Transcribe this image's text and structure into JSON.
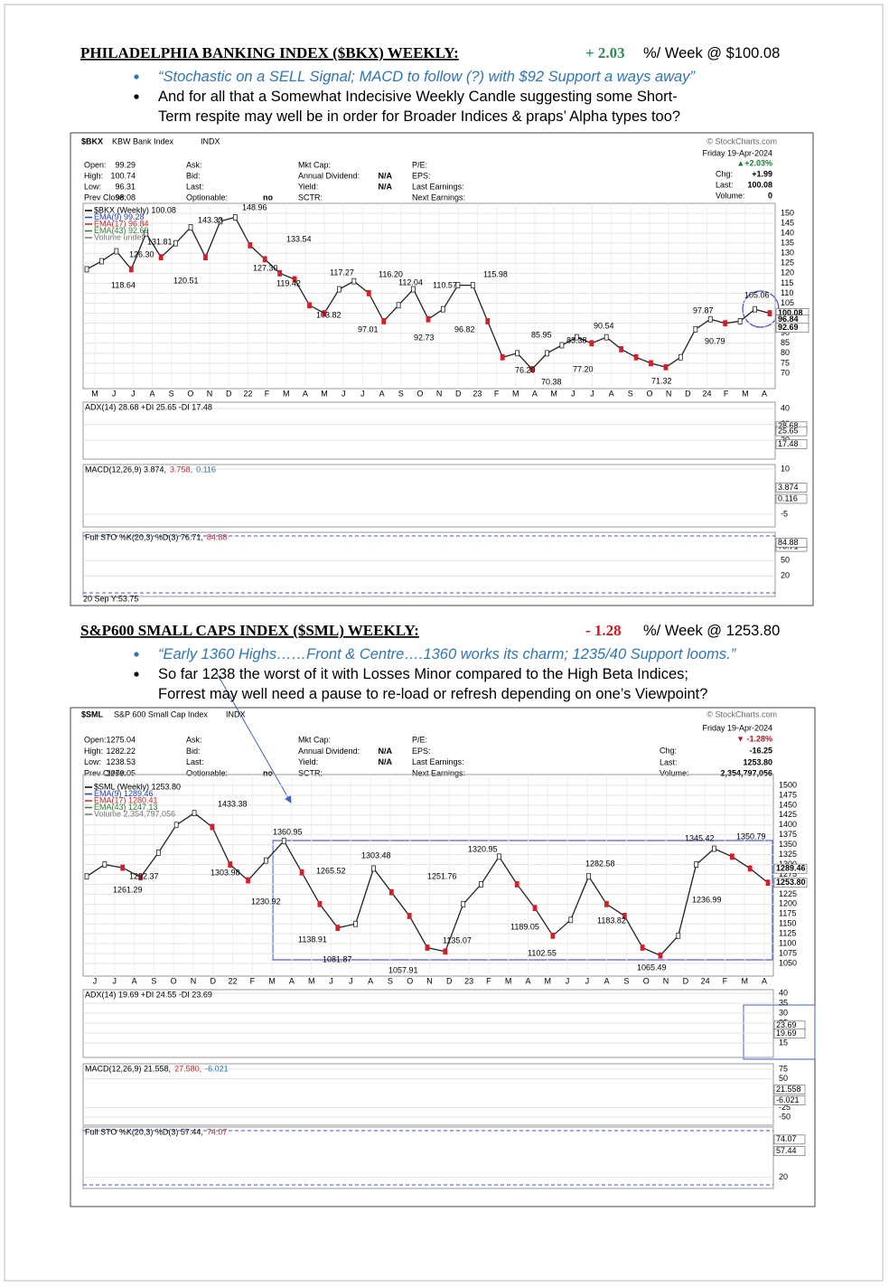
{
  "sections": [
    {
      "heading": "PHILADELPHIA BANKING INDEX ($BKX) WEEKLY:",
      "change": "+ 2.03",
      "change_color": "#2e8b57",
      "change_suffix": "%/ Week @ $100.08",
      "bullets": [
        {
          "lines": [
            "“Stochastic on a SELL Signal; MACD to follow (?) with $92 Support a ways away”"
          ],
          "italic": true
        },
        {
          "lines": [
            "And for all that a Somewhat Indecisive Weekly Candle suggesting some Short-",
            "Term respite may well be in order for Broader Indices & praps’ Alpha types too?"
          ],
          "italic": false
        }
      ],
      "chart": {
        "symbol": "$BKX",
        "name": "KBW Bank Index",
        "exchange": "INDX",
        "source": "© StockCharts.com",
        "quote": [
          [
            [
              "Open:",
              "99.29"
            ],
            [
              "High:",
              "100.74"
            ],
            [
              "Low:",
              "96.31"
            ],
            [
              "Prev Close:",
              "98.08"
            ]
          ],
          [
            [
              "Ask:"
            ],
            [
              "Bid:"
            ],
            [
              "Last:"
            ],
            [
              "Optionable:",
              "no"
            ]
          ],
          [
            [
              "Mkt Cap:"
            ],
            [
              "Annual Dividend:",
              "N/A"
            ],
            [
              "Yield:",
              "N/A"
            ],
            [
              "SCTR:"
            ]
          ],
          [
            [
              "P/E:"
            ],
            [
              "EPS:"
            ],
            [
              "Last Earnings:"
            ],
            [
              "Next Earnings:"
            ]
          ]
        ],
        "summary": {
          "date": "Friday 19-Apr-2024",
          "pct": "▲+2.03%",
          "pct_color": "#1e7b34",
          "rows": [
            [
              "Chg:",
              "+1.99"
            ],
            [
              "Last:",
              "100.08"
            ],
            [
              "Volume:",
              "0"
            ]
          ]
        },
        "legend": [
          {
            "text": "$BKX (Weekly) 100.08",
            "color": "#000000"
          },
          {
            "text": "EMA(9) 99.28",
            "color": "#1f3fbf"
          },
          {
            "text": "EMA(17) 96.84",
            "color": "#c0282d"
          },
          {
            "text": "EMA(43) 92.69",
            "color": "#2e7d32"
          },
          {
            "text": "Volume undef",
            "color": "#777777"
          }
        ],
        "ylim": [
          62.3,
          152.7
        ],
        "yticks": [
          70,
          75,
          80,
          85,
          90,
          95,
          100,
          105,
          110,
          115,
          120,
          125,
          130,
          135,
          140,
          145,
          150
        ],
        "right_labels": [
          100.08,
          96.84,
          92.69
        ],
        "months": [
          "M",
          "J",
          "J",
          "A",
          "S",
          "O",
          "N",
          "D",
          "22",
          "F",
          "M",
          "A",
          "M",
          "J",
          "J",
          "A",
          "S",
          "O",
          "N",
          "D",
          "23",
          "F",
          "M",
          "A",
          "M",
          "J",
          "J",
          "A",
          "S",
          "O",
          "N",
          "D",
          "24",
          "F",
          "M",
          "A"
        ],
        "annotations": [
          118.64,
          {
            "value": 126.3,
            "label": "126.30"
          },
          131.81,
          120.51,
          143.33,
          {
            "value": 127.3,
            "label": "127.30"
          },
          148.96,
          133.54,
          119.42,
          117.27,
          103.82,
          97.01,
          {
            "value": 116.2,
            "label": "116.20"
          },
          112.04,
          92.73,
          110.57,
          96.82,
          115.98,
          85.95,
          {
            "value": 76.2,
            "label": "76.20"
          },
          70.38,
          83.38,
          {
            "value": 77.2,
            "label": "77.20"
          },
          90.54,
          71.32,
          97.87,
          90.79,
          105.06
        ],
        "closes": [
          122,
          126,
          131,
          122,
          140,
          128,
          135,
          143,
          128,
          146,
          148,
          134,
          127,
          120,
          117,
          104,
          100,
          112,
          116,
          110,
          96,
          104,
          112,
          97,
          102,
          114,
          114,
          96,
          78,
          80,
          72,
          80,
          84,
          88,
          85,
          88,
          82,
          78,
          75,
          73,
          78,
          92,
          97,
          95,
          96,
          102,
          100
        ],
        "panels": [
          {
            "label": [
              {
                "text": "ADX(14) 28.68 +DI 25.65 -DI 17.48",
                "color": "#000000"
              }
            ],
            "ylim": [
              8,
              44
            ],
            "yticks": [
              40,
              30,
              20
            ],
            "right_labels": [
              28.68,
              25.65,
              17.48
            ]
          },
          {
            "label": [
              {
                "text": "MACD(12,26,9) 3.874,",
                "color": "#000000"
              },
              {
                "text": "3.758,",
                "color": "#c0282d"
              },
              {
                "text": "0.116",
                "color": "#1f6fbf"
              }
            ],
            "ylim": [
              -9.2,
              11.5
            ],
            "yticks": [
              10,
              -5
            ],
            "right_labels": [
              3.874,
              0.116
            ]
          },
          {
            "label": [
              {
                "text": "Full STO %K(20,3) %D(3) 76.71,",
                "color": "#000000"
              },
              {
                "text": "84.88",
                "color": "#c0282d"
              }
            ],
            "ylim": [
              -20,
              105
            ],
            "yticks": [
              50,
              20
            ],
            "right_labels": [
              76.71,
              84.88
            ]
          }
        ],
        "footer": "20 Sep Y:53.75"
      }
    },
    {
      "heading": "S&P600 SMALL CAPS INDEX ($SML) WEEKLY:",
      "change": "- 1.28",
      "change_color": "#d0191f",
      "change_suffix": "%/ Week @ 1253.80",
      "bullets": [
        {
          "lines": [
            "“Early 1360 Highs……Front & Centre….1360 works its charm; 1235/40 Support looms.”"
          ],
          "italic": true
        },
        {
          "lines": [
            "So far 1238 the worst of it with Losses Minor compared to the High Beta Indices;",
            "Forrest may well need a pause to re-load or refresh depending on one’s Viewpoint?"
          ],
          "italic": false
        }
      ],
      "chart": {
        "symbol": "$SML",
        "name": "S&P 600 Small Cap Index",
        "exchange": "INDX",
        "source": "© StockCharts.com",
        "quote": [
          [
            [
              "Open:",
              "1275.04"
            ],
            [
              "High:",
              "1282.22"
            ],
            [
              "Low:",
              "1238.53"
            ],
            [
              "Prev Close:",
              "1270.05"
            ]
          ],
          [
            [
              "Ask:"
            ],
            [
              "Bid:"
            ],
            [
              "Last:"
            ],
            [
              "Optionable:",
              "no"
            ]
          ],
          [
            [
              "Mkt Cap:"
            ],
            [
              "Annual Dividend:",
              "N/A"
            ],
            [
              "Yield:",
              "N/A"
            ],
            [
              "SCTR:"
            ]
          ],
          [
            [
              "P/E:"
            ],
            [
              "EPS:"
            ],
            [
              "Last Earnings:"
            ],
            [
              "Next Earnings:"
            ]
          ]
        ],
        "summary": {
          "date": "Friday 19-Apr-2024",
          "pct": "▼ -1.28%",
          "pct_color": "#b5121b",
          "rows": [
            [
              "Chg:",
              "-16.25"
            ],
            [
              "Last:",
              "1253.80"
            ],
            [
              "Volume:",
              "2,354,797,056"
            ]
          ]
        },
        "legend": [
          {
            "text": "$SML (Weekly) 1253.80",
            "color": "#000000"
          },
          {
            "text": "EMA(9) 1289.46",
            "color": "#1f3fbf"
          },
          {
            "text": "EMA(17) 1280.41",
            "color": "#c0282d"
          },
          {
            "text": "EMA(43) 1247.13",
            "color": "#2e7d32"
          },
          {
            "text": "Volume 2,354,797,056",
            "color": "#777777"
          }
        ],
        "ylim": [
          1018,
          1516
        ],
        "yticks": [
          1050,
          1075,
          1100,
          1125,
          1150,
          1175,
          1200,
          1225,
          1250,
          1275,
          1300,
          1325,
          1350,
          1375,
          1400,
          1425,
          1450,
          1475,
          1500
        ],
        "right_labels": [
          1289.46,
          {
            "value": 1253.8,
            "label": "1253.80"
          }
        ],
        "months": [
          "J",
          "J",
          "A",
          "S",
          "O",
          "N",
          "D",
          "22",
          "F",
          "M",
          "A",
          "M",
          "J",
          "J",
          "A",
          "S",
          "O",
          "N",
          "D",
          "23",
          "F",
          "M",
          "A",
          "M",
          "J",
          "J",
          "A",
          "S",
          "O",
          "N",
          "D",
          "24",
          "F",
          "M",
          "A"
        ],
        "annotations": [
          1433.38,
          1360.95,
          1303.48,
          1320.95,
          1345.42,
          1350.79,
          1292.37,
          1303.98,
          1265.52,
          1251.76,
          1282.58,
          1261.29,
          1230.92,
          1189.05,
          1236.99,
          1183.82,
          1138.91,
          1135.07,
          1102.55,
          1081.87,
          1057.91,
          1065.49
        ],
        "closes": [
          1270,
          1300,
          1292,
          1268,
          1330,
          1400,
          1430,
          1395,
          1300,
          1260,
          1310,
          1360,
          1280,
          1200,
          1140,
          1150,
          1290,
          1230,
          1170,
          1090,
          1080,
          1200,
          1250,
          1320,
          1250,
          1190,
          1120,
          1160,
          1270,
          1200,
          1170,
          1090,
          1070,
          1120,
          1300,
          1340,
          1320,
          1290,
          1254
        ],
        "panels": [
          {
            "label": [
              {
                "text": "ADX(14) 19.69 +DI 24.55 -DI 23.69",
                "color": "#000000"
              }
            ],
            "ylim": [
              7.7,
              41.8
            ],
            "yticks": [
              40,
              35,
              30,
              25,
              20,
              15
            ],
            "right_labels": [
              23.69,
              19.69
            ]
          },
          {
            "label": [
              {
                "text": "MACD(12,26,9) 21.558,",
                "color": "#000000"
              },
              {
                "text": "27.580,",
                "color": "#c0282d"
              },
              {
                "text": "-6.021",
                "color": "#1f6fbf"
              }
            ],
            "ylim": [
              -71,
              89
            ],
            "yticks": [
              75,
              50,
              -25,
              -50
            ],
            "right_labels": [
              21.558,
              -6.021
            ]
          },
          {
            "label": [
              {
                "text": "Full STO %K(20,3) %D(3) 57.44,",
                "color": "#000000"
              },
              {
                "text": "74.07",
                "color": "#c0282d"
              }
            ],
            "ylim": [
              4,
              92
            ],
            "yticks": [
              20
            ],
            "right_labels": [
              74.07,
              57.44
            ]
          }
        ]
      }
    }
  ]
}
